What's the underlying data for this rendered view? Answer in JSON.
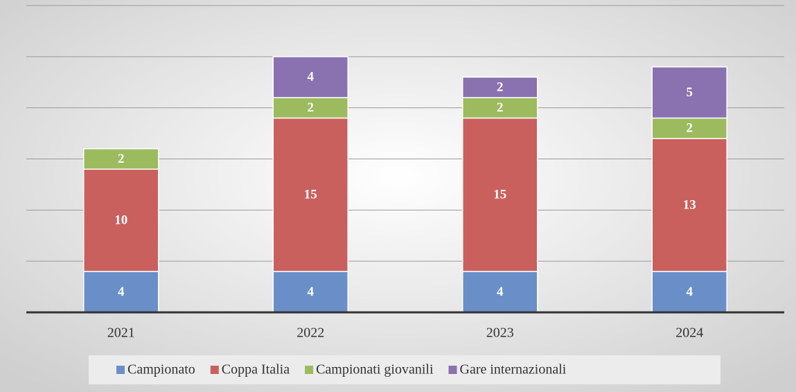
{
  "chart_data": {
    "type": "stacked_bar",
    "categories": [
      "2021",
      "2022",
      "2023",
      "2024"
    ],
    "series": [
      {
        "name": "Campionato",
        "color": "#6a8fc8",
        "values": [
          4,
          4,
          4,
          4
        ]
      },
      {
        "name": "Coppa Italia",
        "color": "#c9605d",
        "values": [
          10,
          15,
          15,
          13
        ]
      },
      {
        "name": "Campionati giovanili",
        "color": "#9cbb5e",
        "values": [
          2,
          2,
          2,
          2
        ]
      },
      {
        "name": "Gare internazionali",
        "color": "#8a72b0",
        "values": [
          null,
          4,
          2,
          5
        ]
      }
    ],
    "ylim": [
      0,
      30
    ],
    "yticks": [
      0,
      5,
      10,
      15,
      20,
      25,
      30
    ],
    "grid": true,
    "legend": "bottom"
  }
}
